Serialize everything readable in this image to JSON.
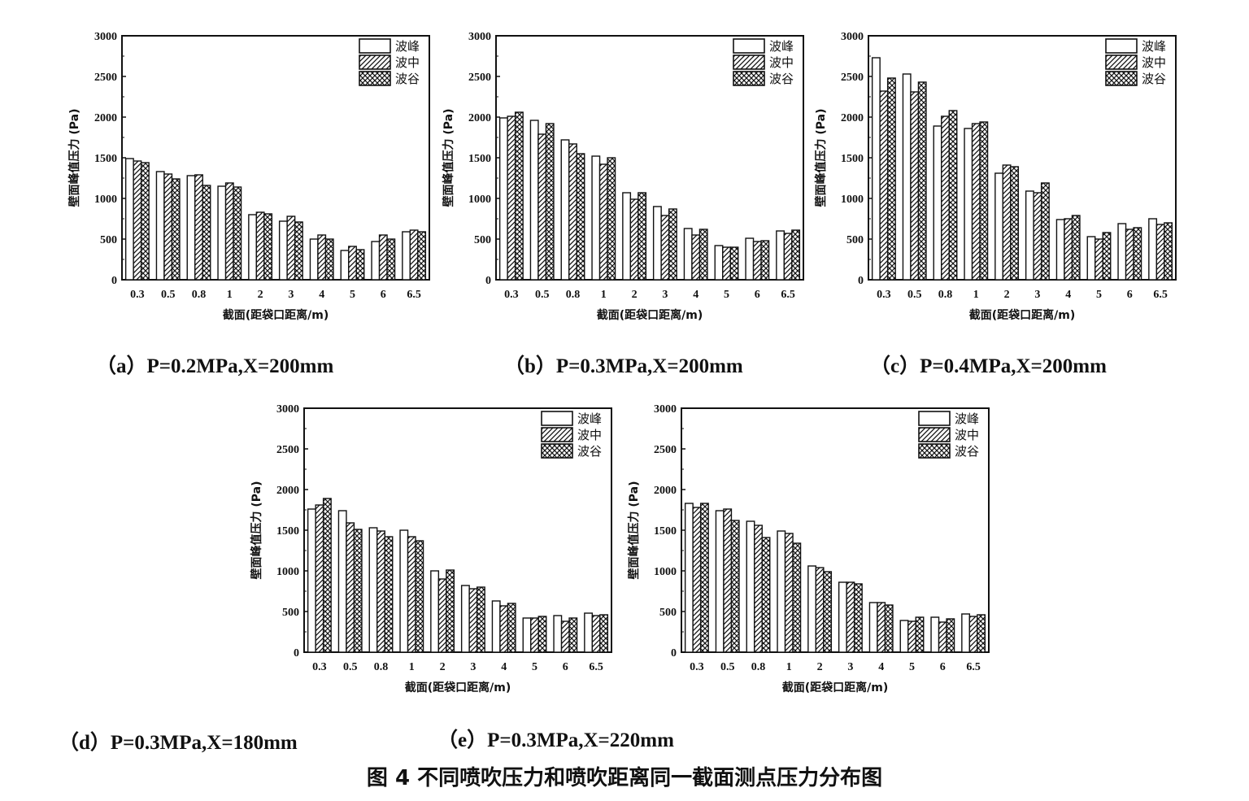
{
  "figure_title": "图 4  不同喷吹压力和喷吹距离同一截面测点压力分布图",
  "legend_labels": [
    "波峰",
    "波中",
    "波谷"
  ],
  "colors": {
    "ink": "#111111",
    "bar_fill": "#ffffff"
  },
  "chart_data": [
    {
      "type": "bar",
      "id": "a",
      "caption": "（a）P=0.2MPa,X=200mm",
      "xlabel": "截面(距袋口距离/m)",
      "ylabel": "壁面峰值压力 (Pa)",
      "ylim": [
        0,
        3000
      ],
      "yticks": [
        "0",
        "500",
        "1000",
        "1500",
        "2000",
        "2500",
        "3000"
      ],
      "categories": [
        "0.3",
        "0.5",
        "0.8",
        "1",
        "2",
        "3",
        "4",
        "5",
        "6",
        "6.5"
      ],
      "legend_position": "top-right",
      "series": [
        {
          "name": "波峰",
          "pattern": "none",
          "values": [
            1490,
            1330,
            1280,
            1150,
            800,
            720,
            500,
            360,
            470,
            590
          ]
        },
        {
          "name": "波中",
          "pattern": "diagonal",
          "values": [
            1460,
            1300,
            1290,
            1190,
            830,
            780,
            550,
            410,
            550,
            610
          ]
        },
        {
          "name": "波谷",
          "pattern": "crosshatch",
          "values": [
            1440,
            1240,
            1160,
            1140,
            810,
            710,
            500,
            370,
            500,
            590
          ]
        }
      ]
    },
    {
      "type": "bar",
      "id": "b",
      "caption": "（b）P=0.3MPa,X=200mm",
      "xlabel": "截面(距袋口距离/m)",
      "ylabel": "壁面峰值压力 (Pa)",
      "ylim": [
        0,
        3000
      ],
      "yticks": [
        "0",
        "500",
        "1000",
        "1500",
        "2000",
        "2500",
        "3000"
      ],
      "categories": [
        "0.3",
        "0.5",
        "0.8",
        "1",
        "2",
        "3",
        "4",
        "5",
        "6",
        "6.5"
      ],
      "legend_position": "top-right",
      "series": [
        {
          "name": "波峰",
          "pattern": "none",
          "values": [
            1990,
            1960,
            1720,
            1520,
            1070,
            900,
            630,
            420,
            510,
            600
          ]
        },
        {
          "name": "波中",
          "pattern": "diagonal",
          "values": [
            2010,
            1790,
            1670,
            1420,
            990,
            790,
            550,
            400,
            470,
            570
          ]
        },
        {
          "name": "波谷",
          "pattern": "crosshatch",
          "values": [
            2060,
            1920,
            1550,
            1500,
            1070,
            870,
            620,
            400,
            480,
            610
          ]
        }
      ]
    },
    {
      "type": "bar",
      "id": "c",
      "caption": "（c）P=0.4MPa,X=200mm",
      "xlabel": "截面(距袋口距离/m)",
      "ylabel": "壁面峰值压力 (Pa)",
      "ylim": [
        0,
        3000
      ],
      "yticks": [
        "0",
        "500",
        "1000",
        "1500",
        "2000",
        "2500",
        "3000"
      ],
      "categories": [
        "0.3",
        "0.5",
        "0.8",
        "1",
        "2",
        "3",
        "4",
        "5",
        "6",
        "6.5"
      ],
      "legend_position": "top-right",
      "series": [
        {
          "name": "波峰",
          "pattern": "none",
          "values": [
            2730,
            2530,
            1890,
            1860,
            1310,
            1090,
            740,
            530,
            690,
            750
          ]
        },
        {
          "name": "波中",
          "pattern": "diagonal",
          "values": [
            2320,
            2310,
            2010,
            1920,
            1410,
            1070,
            750,
            500,
            620,
            680
          ]
        },
        {
          "name": "波谷",
          "pattern": "crosshatch",
          "values": [
            2480,
            2430,
            2080,
            1940,
            1390,
            1190,
            790,
            580,
            640,
            700
          ]
        }
      ]
    },
    {
      "type": "bar",
      "id": "d",
      "caption": "（d）P=0.3MPa,X=180mm",
      "xlabel": "截面(距袋口距离/m)",
      "ylabel": "壁面峰值压力 (Pa)",
      "ylim": [
        0,
        3000
      ],
      "yticks": [
        "0",
        "500",
        "1000",
        "1500",
        "2000",
        "2500",
        "3000"
      ],
      "categories": [
        "0.3",
        "0.5",
        "0.8",
        "1",
        "2",
        "3",
        "4",
        "5",
        "6",
        "6.5"
      ],
      "legend_position": "top-right",
      "series": [
        {
          "name": "波峰",
          "pattern": "none",
          "values": [
            1760,
            1740,
            1530,
            1500,
            1000,
            820,
            630,
            420,
            450,
            480
          ]
        },
        {
          "name": "波中",
          "pattern": "diagonal",
          "values": [
            1810,
            1590,
            1490,
            1420,
            900,
            780,
            570,
            420,
            380,
            450
          ]
        },
        {
          "name": "波谷",
          "pattern": "crosshatch",
          "values": [
            1890,
            1510,
            1420,
            1370,
            1010,
            800,
            600,
            440,
            420,
            460
          ]
        }
      ]
    },
    {
      "type": "bar",
      "id": "e",
      "caption": "（e）P=0.3MPa,X=220mm",
      "xlabel": "截面(距袋口距离/m)",
      "ylabel": "壁面峰值压力 (Pa)",
      "ylim": [
        0,
        3000
      ],
      "yticks": [
        "0",
        "500",
        "1000",
        "1500",
        "2000",
        "2500",
        "3000"
      ],
      "categories": [
        "0.3",
        "0.5",
        "0.8",
        "1",
        "2",
        "3",
        "4",
        "5",
        "6",
        "6.5"
      ],
      "legend_position": "top-right",
      "series": [
        {
          "name": "波峰",
          "pattern": "none",
          "values": [
            1830,
            1740,
            1610,
            1490,
            1060,
            860,
            610,
            390,
            430,
            470
          ]
        },
        {
          "name": "波中",
          "pattern": "diagonal",
          "values": [
            1780,
            1760,
            1560,
            1460,
            1040,
            860,
            610,
            380,
            370,
            440
          ]
        },
        {
          "name": "波谷",
          "pattern": "crosshatch",
          "values": [
            1830,
            1620,
            1410,
            1340,
            990,
            840,
            580,
            430,
            410,
            460
          ]
        }
      ]
    }
  ]
}
